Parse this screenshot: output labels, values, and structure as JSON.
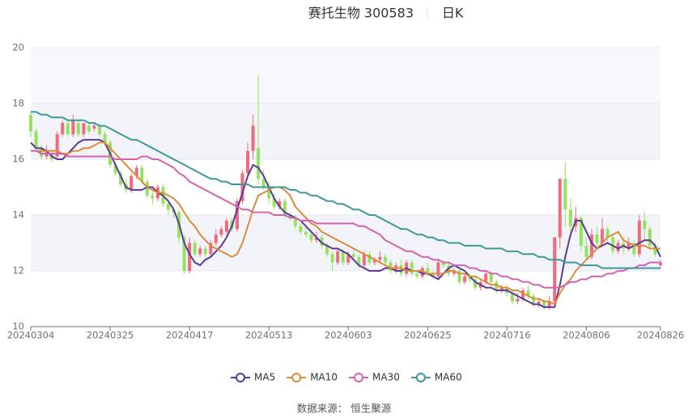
{
  "chart_data": {
    "type": "candlestick",
    "title": "赛托生物 300583",
    "subtitle": "日K",
    "source": "数据来源： 恒生聚源",
    "legend": "bottom",
    "ylim": [
      10,
      20
    ],
    "yticks": [
      10,
      12,
      14,
      16,
      18,
      20
    ],
    "grid": true,
    "categories": [
      "20240304",
      null,
      null,
      null,
      null,
      null,
      null,
      null,
      null,
      null,
      null,
      null,
      null,
      null,
      null,
      "20240325",
      null,
      null,
      null,
      null,
      null,
      null,
      null,
      null,
      null,
      null,
      null,
      null,
      null,
      null,
      "20240417",
      null,
      null,
      null,
      null,
      null,
      null,
      null,
      null,
      null,
      null,
      null,
      null,
      null,
      null,
      "20240513",
      null,
      null,
      null,
      null,
      null,
      null,
      null,
      null,
      null,
      null,
      null,
      null,
      null,
      null,
      "20240603",
      null,
      null,
      null,
      null,
      null,
      null,
      null,
      null,
      null,
      null,
      null,
      null,
      null,
      null,
      "20240625",
      null,
      null,
      null,
      null,
      null,
      null,
      null,
      null,
      null,
      null,
      null,
      null,
      null,
      null,
      "20240716",
      null,
      null,
      null,
      null,
      null,
      null,
      null,
      null,
      null,
      null,
      null,
      null,
      null,
      null,
      "20240806",
      null,
      null,
      null,
      null,
      null,
      null,
      null,
      null,
      null,
      null,
      null,
      null,
      null,
      "20240826"
    ],
    "candles": {
      "up_color": "#ee6b7e",
      "down_color": "#93e35f",
      "open": [
        17.6,
        17.0,
        16.4,
        16.1,
        16.2,
        16.1,
        16.9,
        17.3,
        16.9,
        17.3,
        16.9,
        17.2,
        17.1,
        17.2,
        16.9,
        16.6,
        15.8,
        15.5,
        15.1,
        14.9,
        15.4,
        15.7,
        15.2,
        14.7,
        14.6,
        15.0,
        14.4,
        14.2,
        14.1,
        13.2,
        12.0,
        13.0,
        12.6,
        12.8,
        12.6,
        13.0,
        13.3,
        13.4,
        13.8,
        13.5,
        14.5,
        15.5,
        16.3,
        16.4,
        15.3,
        15.0,
        14.6,
        14.3,
        14.5,
        14.0,
        13.9,
        13.6,
        13.4,
        13.3,
        13.1,
        13.2,
        12.9,
        12.6,
        12.3,
        12.7,
        12.3,
        12.6,
        12.5,
        12.2,
        12.6,
        12.3,
        12.4,
        12.5,
        12.3,
        12.0,
        12.2,
        11.9,
        12.3,
        11.9,
        11.8,
        12.1,
        11.9,
        11.8,
        12.3,
        12.2,
        11.9,
        12.0,
        11.6,
        11.8,
        11.7,
        11.4,
        11.6,
        11.9,
        11.6,
        11.3,
        11.4,
        11.2,
        10.9,
        11.0,
        11.3,
        11.1,
        10.8,
        10.9,
        10.7,
        10.9,
        13.2,
        15.3,
        14.2,
        13.6,
        13.9,
        12.9,
        12.5,
        13.3,
        13.0,
        13.5,
        13.2,
        12.7,
        13.0,
        12.8,
        13.0,
        12.6,
        13.8,
        13.5,
        12.9,
        12.2
      ],
      "close": [
        17.0,
        16.4,
        16.1,
        16.3,
        16.0,
        16.9,
        17.3,
        16.9,
        17.4,
        16.9,
        17.3,
        17.0,
        17.2,
        16.9,
        16.6,
        15.8,
        15.5,
        15.1,
        14.9,
        15.4,
        15.7,
        15.2,
        14.7,
        14.6,
        15.0,
        14.4,
        14.2,
        14.1,
        13.2,
        12.0,
        13.0,
        12.6,
        12.8,
        12.6,
        13.0,
        13.3,
        13.5,
        13.8,
        13.5,
        14.5,
        15.5,
        16.3,
        17.2,
        15.3,
        15.0,
        14.6,
        14.3,
        14.5,
        14.0,
        13.9,
        13.6,
        13.4,
        13.3,
        13.1,
        13.2,
        12.9,
        12.6,
        12.3,
        12.7,
        12.3,
        12.6,
        12.5,
        12.2,
        12.6,
        12.3,
        12.4,
        12.5,
        12.3,
        12.0,
        12.2,
        11.9,
        12.3,
        11.9,
        11.8,
        12.1,
        11.9,
        11.8,
        12.3,
        12.2,
        11.9,
        12.0,
        11.6,
        11.8,
        11.7,
        11.4,
        11.6,
        11.9,
        11.6,
        11.3,
        11.4,
        11.2,
        10.9,
        11.0,
        11.3,
        11.1,
        10.8,
        10.9,
        10.7,
        10.9,
        13.2,
        15.3,
        14.2,
        13.6,
        13.9,
        12.9,
        12.5,
        13.3,
        13.0,
        13.5,
        13.2,
        12.7,
        13.0,
        12.8,
        13.0,
        12.6,
        13.8,
        13.5,
        12.9,
        12.6,
        12.3
      ],
      "low": [
        16.8,
        16.3,
        16.0,
        16.0,
        15.9,
        16.0,
        16.8,
        16.8,
        16.8,
        16.8,
        16.8,
        16.9,
        17.0,
        16.8,
        16.5,
        15.7,
        15.4,
        15.0,
        14.8,
        14.8,
        15.3,
        15.1,
        14.6,
        14.4,
        14.5,
        14.3,
        14.0,
        13.9,
        13.0,
        11.9,
        11.9,
        12.5,
        12.5,
        12.5,
        12.5,
        12.9,
        13.2,
        13.3,
        13.4,
        13.4,
        14.4,
        15.4,
        16.0,
        15.1,
        14.9,
        14.4,
        14.2,
        14.2,
        13.9,
        13.8,
        13.5,
        13.3,
        13.2,
        13.0,
        13.0,
        12.8,
        12.5,
        12.0,
        12.2,
        12.2,
        12.2,
        12.4,
        12.1,
        12.1,
        12.2,
        12.2,
        12.3,
        12.2,
        11.9,
        11.9,
        11.8,
        11.8,
        11.8,
        11.7,
        11.7,
        11.8,
        11.7,
        11.7,
        12.1,
        11.8,
        11.8,
        11.5,
        11.5,
        11.6,
        11.3,
        11.3,
        11.5,
        11.5,
        11.2,
        11.2,
        11.1,
        10.8,
        10.8,
        10.9,
        11.0,
        10.7,
        10.7,
        10.6,
        10.6,
        10.8,
        12.8,
        13.6,
        13.4,
        13.4,
        12.7,
        12.4,
        12.4,
        12.9,
        12.9,
        13.0,
        12.6,
        12.6,
        12.6,
        12.7,
        12.5,
        12.5,
        13.1,
        12.8,
        12.5,
        12.1
      ],
      "high": [
        17.7,
        17.1,
        16.5,
        16.5,
        16.3,
        17.0,
        17.4,
        17.4,
        17.6,
        17.4,
        17.3,
        17.3,
        17.3,
        17.3,
        17.0,
        16.7,
        15.9,
        15.6,
        15.3,
        15.5,
        15.8,
        15.8,
        15.3,
        14.9,
        15.1,
        15.1,
        14.6,
        14.3,
        14.2,
        13.3,
        13.2,
        13.1,
        12.9,
        12.9,
        13.1,
        13.5,
        13.6,
        13.9,
        13.9,
        14.6,
        15.6,
        16.6,
        17.6,
        19.0,
        15.6,
        15.2,
        14.8,
        14.6,
        14.6,
        14.1,
        14.0,
        13.7,
        13.6,
        13.4,
        13.4,
        13.3,
        13.0,
        12.7,
        12.8,
        12.8,
        12.7,
        12.8,
        12.6,
        12.7,
        12.7,
        12.5,
        12.7,
        12.6,
        12.4,
        12.3,
        12.4,
        12.4,
        12.4,
        12.0,
        12.2,
        12.3,
        12.0,
        12.4,
        12.4,
        12.3,
        12.1,
        12.1,
        11.9,
        11.9,
        11.8,
        11.7,
        12.0,
        12.0,
        11.7,
        11.5,
        11.5,
        11.3,
        11.2,
        11.4,
        11.5,
        11.2,
        11.0,
        11.0,
        11.1,
        13.2,
        15.3,
        15.9,
        14.6,
        14.3,
        14.0,
        13.2,
        13.5,
        13.6,
        13.9,
        13.6,
        13.3,
        13.1,
        13.2,
        13.2,
        13.1,
        14.0,
        14.1,
        13.6,
        13.0,
        12.4
      ]
    },
    "series": [
      {
        "name": "MA5",
        "color": "#5b3a96",
        "values": [
          16.6,
          16.4,
          16.4,
          16.3,
          16.1,
          16.0,
          16.0,
          16.2,
          16.4,
          16.6,
          16.7,
          16.7,
          16.7,
          16.7,
          16.6,
          16.2,
          15.8,
          15.4,
          15.0,
          14.9,
          14.9,
          14.9,
          15.0,
          15.0,
          14.8,
          14.7,
          14.5,
          14.2,
          13.7,
          13.0,
          12.6,
          12.3,
          12.2,
          12.4,
          12.5,
          12.7,
          12.9,
          13.2,
          13.6,
          14.2,
          14.8,
          15.4,
          15.8,
          15.7,
          15.4,
          15.0,
          14.6,
          14.3,
          14.1,
          14.0,
          13.9,
          13.8,
          13.6,
          13.4,
          13.2,
          13.0,
          12.9,
          12.8,
          12.8,
          12.7,
          12.6,
          12.4,
          12.2,
          12.1,
          12.0,
          12.0,
          12.0,
          12.1,
          12.1,
          12.0,
          12.0,
          12.1,
          12.0,
          12.0,
          11.9,
          11.9,
          11.8,
          11.7,
          11.9,
          12.1,
          12.2,
          12.1,
          12.0,
          11.8,
          11.6,
          11.5,
          11.4,
          11.4,
          11.3,
          11.3,
          11.3,
          11.2,
          11.1,
          11.0,
          10.9,
          10.8,
          10.8,
          10.7,
          10.7,
          10.7,
          11.5,
          12.5,
          13.3,
          13.8,
          13.8,
          13.4,
          13.0,
          12.8,
          12.9,
          13.0,
          12.9,
          12.8,
          12.9,
          12.8,
          12.9,
          13.0,
          13.1,
          13.1,
          12.9,
          12.5
        ]
      },
      {
        "name": "MA10",
        "color": "#dc8a3c",
        "values": [
          16.3,
          16.3,
          16.3,
          16.3,
          16.3,
          16.3,
          16.2,
          16.2,
          16.3,
          16.3,
          16.4,
          16.4,
          16.5,
          16.6,
          16.6,
          16.4,
          16.2,
          16.0,
          15.8,
          15.6,
          15.4,
          15.2,
          15.0,
          14.9,
          14.8,
          14.8,
          14.7,
          14.6,
          14.4,
          14.1,
          13.8,
          13.6,
          13.3,
          13.1,
          12.9,
          12.8,
          12.7,
          12.6,
          12.5,
          12.6,
          13.0,
          13.6,
          14.2,
          14.7,
          14.8,
          14.9,
          15.0,
          15.0,
          14.9,
          14.7,
          14.3,
          14.1,
          13.9,
          13.7,
          13.6,
          13.4,
          13.3,
          13.2,
          13.1,
          13.0,
          12.9,
          12.8,
          12.7,
          12.6,
          12.5,
          12.4,
          12.3,
          12.2,
          12.1,
          12.1,
          12.1,
          12.0,
          12.0,
          12.0,
          12.0,
          11.9,
          11.9,
          11.9,
          11.9,
          12.0,
          12.0,
          11.9,
          11.9,
          11.8,
          11.8,
          11.7,
          11.6,
          11.5,
          11.5,
          11.4,
          11.4,
          11.3,
          11.3,
          11.2,
          11.1,
          11.0,
          11.0,
          10.9,
          10.9,
          10.8,
          11.2,
          11.5,
          11.7,
          12.0,
          12.2,
          12.4,
          12.6,
          12.8,
          13.0,
          13.2,
          13.3,
          13.4,
          13.1,
          13.0,
          12.9,
          12.9,
          12.9,
          12.8,
          12.8,
          12.8
        ]
      },
      {
        "name": "MA30",
        "color": "#d462ae",
        "values": [
          16.3,
          16.3,
          16.2,
          16.2,
          16.2,
          16.2,
          16.2,
          16.1,
          16.1,
          16.1,
          16.1,
          16.1,
          16.1,
          16.1,
          16.1,
          16.1,
          16.0,
          16.0,
          16.0,
          16.0,
          16.0,
          16.1,
          16.1,
          16.0,
          16.0,
          15.9,
          15.8,
          15.7,
          15.5,
          15.4,
          15.2,
          15.1,
          15.0,
          14.9,
          14.8,
          14.7,
          14.6,
          14.5,
          14.4,
          14.3,
          14.2,
          14.2,
          14.1,
          14.1,
          14.1,
          14.1,
          14.0,
          14.0,
          14.0,
          13.9,
          13.9,
          13.8,
          13.8,
          13.8,
          13.7,
          13.7,
          13.7,
          13.7,
          13.7,
          13.7,
          13.7,
          13.7,
          13.6,
          13.6,
          13.5,
          13.4,
          13.3,
          13.1,
          13.0,
          12.9,
          12.8,
          12.7,
          12.7,
          12.6,
          12.5,
          12.5,
          12.4,
          12.4,
          12.3,
          12.3,
          12.2,
          12.2,
          12.2,
          12.1,
          12.1,
          12.0,
          12.0,
          11.9,
          11.9,
          11.8,
          11.8,
          11.7,
          11.7,
          11.6,
          11.6,
          11.5,
          11.5,
          11.4,
          11.4,
          11.4,
          11.4,
          11.5,
          11.6,
          11.6,
          11.7,
          11.7,
          11.8,
          11.8,
          11.8,
          11.9,
          11.9,
          12.0,
          12.0,
          12.1,
          12.1,
          12.2,
          12.2,
          12.3,
          12.3,
          12.3
        ]
      },
      {
        "name": "MA60",
        "color": "#3c989a",
        "values": [
          17.7,
          17.7,
          17.6,
          17.6,
          17.5,
          17.5,
          17.5,
          17.4,
          17.4,
          17.4,
          17.4,
          17.3,
          17.3,
          17.2,
          17.2,
          17.1,
          17.0,
          16.9,
          16.8,
          16.7,
          16.7,
          16.6,
          16.5,
          16.4,
          16.3,
          16.2,
          16.1,
          16.0,
          15.9,
          15.8,
          15.7,
          15.6,
          15.5,
          15.4,
          15.3,
          15.3,
          15.2,
          15.2,
          15.1,
          15.1,
          15.1,
          15.1,
          15.0,
          15.0,
          15.0,
          15.0,
          15.0,
          15.0,
          15.0,
          14.9,
          14.9,
          14.8,
          14.8,
          14.7,
          14.7,
          14.6,
          14.5,
          14.5,
          14.4,
          14.4,
          14.3,
          14.2,
          14.2,
          14.1,
          14.0,
          14.0,
          13.9,
          13.8,
          13.7,
          13.6,
          13.5,
          13.5,
          13.4,
          13.3,
          13.3,
          13.2,
          13.2,
          13.1,
          13.1,
          13.0,
          13.0,
          13.0,
          12.9,
          12.9,
          12.9,
          12.9,
          12.8,
          12.8,
          12.8,
          12.8,
          12.7,
          12.7,
          12.7,
          12.6,
          12.6,
          12.6,
          12.5,
          12.5,
          12.4,
          12.4,
          12.4,
          12.3,
          12.3,
          12.3,
          12.2,
          12.2,
          12.2,
          12.2,
          12.1,
          12.1,
          12.1,
          12.1,
          12.1,
          12.1,
          12.1,
          12.1,
          12.1,
          12.1,
          12.1,
          12.1
        ]
      }
    ]
  }
}
